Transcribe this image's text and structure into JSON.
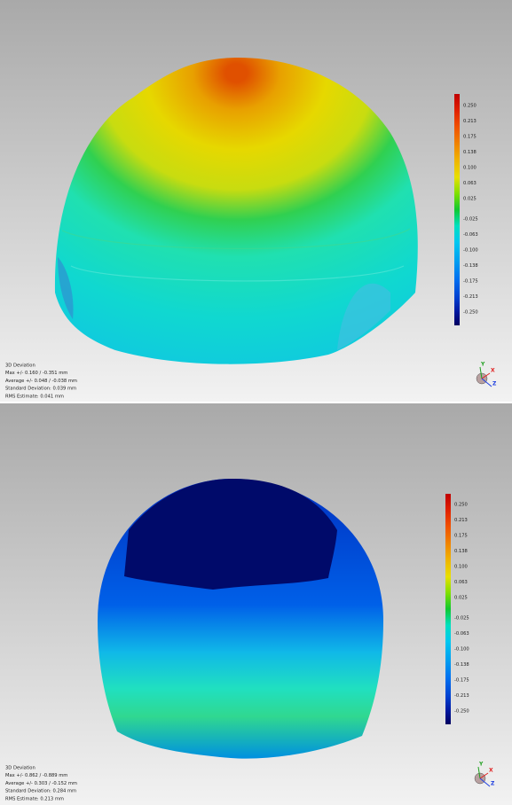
{
  "panels": [
    {
      "legend": {
        "labels": [
          "0.250",
          "0.213",
          "0.175",
          "0.138",
          "0.100",
          "0.063",
          "0.025",
          "-0.025",
          "-0.063",
          "-0.100",
          "-0.138",
          "-0.175",
          "-0.213",
          "-0.250"
        ]
      },
      "stats": {
        "title": "3D Deviation",
        "lines": [
          "Max +/- 0.160 / -0.351 mm",
          "Average +/- 0.048 / -0.038 mm",
          "Standard Deviation: 0.039 mm",
          "RMS Estimate: 0.041 mm"
        ]
      },
      "axes": [
        "Y",
        "X",
        "Z"
      ]
    },
    {
      "legend": {
        "labels": [
          "0.250",
          "0.213",
          "0.175",
          "0.138",
          "0.100",
          "0.063",
          "0.025",
          "-0.025",
          "-0.063",
          "-0.100",
          "-0.138",
          "-0.175",
          "-0.213",
          "-0.250"
        ]
      },
      "stats": {
        "title": "3D Deviation",
        "lines": [
          "Max +/- 0.862 / -0.889 mm",
          "Average +/- 0.303 / -0.152 mm",
          "Standard Deviation: 0.284 mm",
          "RMS Estimate: 0.213 mm"
        ]
      },
      "axes": [
        "Y",
        "X",
        "Z"
      ]
    }
  ]
}
